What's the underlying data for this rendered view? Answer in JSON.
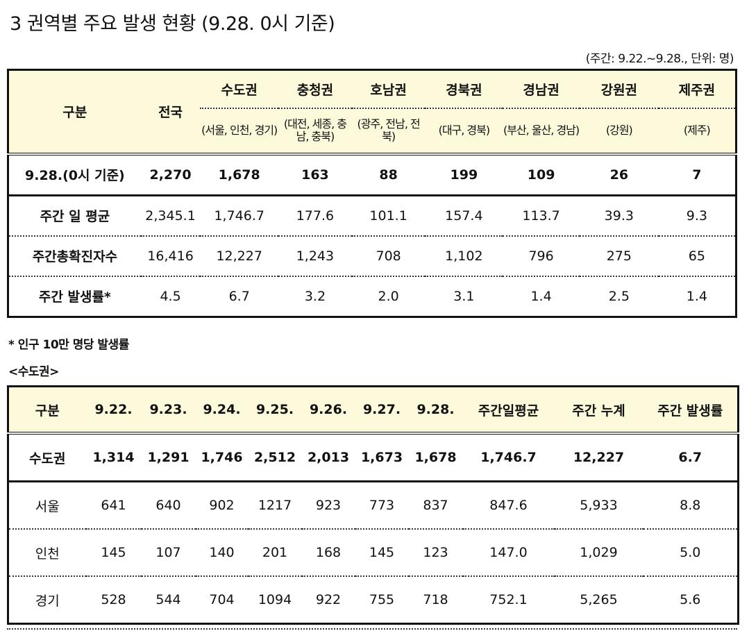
{
  "title": "3 권역별 주요 발생 현황 (9.28. 0시 기준)",
  "unit": "(주간: 9.22.~9.28., 단위: 명)",
  "table1": {
    "corner": "구분",
    "national": "전국",
    "regions": [
      {
        "name": "수도권",
        "sub": "(서울, 인천, 경기)"
      },
      {
        "name": "충청권",
        "sub": "(대전, 세종, 충남, 충북)"
      },
      {
        "name": "호남권",
        "sub": "(광주, 전남, 전북)"
      },
      {
        "name": "경북권",
        "sub": "(대구, 경북)"
      },
      {
        "name": "경남권",
        "sub": "(부산, 울산, 경남)"
      },
      {
        "name": "강원권",
        "sub": "(강원)"
      },
      {
        "name": "제주권",
        "sub": "(제주)"
      }
    ],
    "rows": [
      {
        "label": "9.28.(0시 기준)",
        "values": [
          "2,270",
          "1,678",
          "163",
          "88",
          "199",
          "109",
          "26",
          "7"
        ]
      },
      {
        "label": "주간 일 평균",
        "values": [
          "2,345.1",
          "1,746.7",
          "177.6",
          "101.1",
          "157.4",
          "113.7",
          "39.3",
          "9.3"
        ]
      },
      {
        "label": "주간총확진자수",
        "values": [
          "16,416",
          "12,227",
          "1,243",
          "708",
          "1,102",
          "796",
          "275",
          "65"
        ]
      },
      {
        "label": "주간 발생률*",
        "values": [
          "4.5",
          "6.7",
          "3.2",
          "2.0",
          "3.1",
          "1.4",
          "2.5",
          "1.4"
        ]
      }
    ]
  },
  "note": "* 인구 10만 명당 발생률",
  "section2": "<수도권>",
  "table2": {
    "headers": [
      "구분",
      "9.22.",
      "9.23.",
      "9.24.",
      "9.25.",
      "9.26.",
      "9.27.",
      "9.28.",
      "주간일평균",
      "주간 누계",
      "주간 발생률"
    ],
    "rows": [
      [
        "수도권",
        "1,314",
        "1,291",
        "1,746",
        "2,512",
        "2,013",
        "1,673",
        "1,678",
        "1,746.7",
        "12,227",
        "6.7"
      ],
      [
        "서울",
        "641",
        "640",
        "902",
        "1217",
        "923",
        "773",
        "837",
        "847.6",
        "5,933",
        "8.8"
      ],
      [
        "인천",
        "145",
        "107",
        "140",
        "201",
        "168",
        "145",
        "123",
        "147.0",
        "1,029",
        "5.0"
      ],
      [
        "경기",
        "528",
        "544",
        "704",
        "1094",
        "922",
        "755",
        "718",
        "752.1",
        "5,265",
        "5.6"
      ]
    ]
  }
}
